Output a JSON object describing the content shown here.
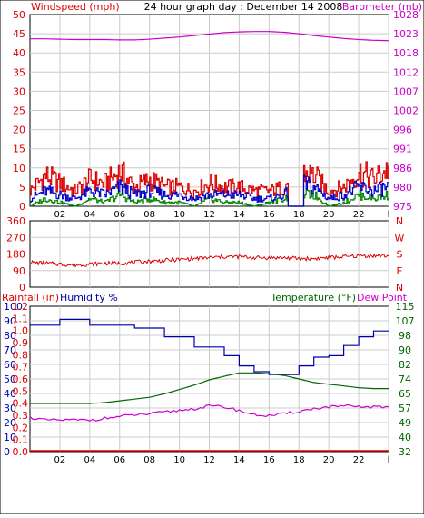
{
  "title": "24 hour graph day : December 14 2008",
  "colors": {
    "wind": "#dd0000",
    "gust": "#0000cc",
    "avg": "#008800",
    "baro": "#cc00cc",
    "dir": "#dd0000",
    "rain": "#dd0000",
    "humidity": "#0000aa",
    "temperature": "#006600",
    "dewpoint": "#cc00cc",
    "grid": "#cccccc",
    "frame": "#000000"
  },
  "chart_data": [
    {
      "type": "line",
      "panel": "wind-barometer",
      "title": "24 hour graph day : December 14 2008",
      "x_tick_labels": [
        "02",
        "04",
        "06",
        "08",
        "10",
        "12",
        "14",
        "16",
        "18",
        "20",
        "22",
        "l"
      ],
      "x_hours": [
        0,
        1,
        2,
        3,
        4,
        5,
        6,
        7,
        8,
        9,
        10,
        11,
        12,
        13,
        14,
        15,
        16,
        17,
        18,
        19,
        20,
        21,
        22,
        23,
        24
      ],
      "left_axis": {
        "label": "Windspeed (mph)",
        "ticks": [
          "0",
          "5",
          "10",
          "15",
          "20",
          "25",
          "30",
          "35",
          "40",
          "45",
          "50"
        ],
        "ylim": [
          0,
          50
        ]
      },
      "right_axis": {
        "label": "Barometer (mb)",
        "ticks": [
          "975",
          "980",
          "986",
          "991",
          "996",
          "1002",
          "1007",
          "1012",
          "1018",
          "1023",
          "1028"
        ],
        "ylim": [
          975,
          1028
        ]
      },
      "series": [
        {
          "axis": "left",
          "values": [
            4,
            8,
            6,
            4,
            7,
            6,
            9,
            5,
            7,
            5,
            5,
            4,
            6,
            5,
            5,
            4,
            4,
            5,
            9,
            8,
            4,
            5,
            9,
            7,
            10
          ]
        },
        {
          "axis": "left",
          "values": [
            2,
            4,
            3,
            2,
            4,
            3,
            5,
            3,
            4,
            3,
            3,
            2,
            3,
            3,
            3,
            2,
            2,
            3,
            6,
            5,
            2,
            3,
            5,
            4,
            5
          ]
        },
        {
          "axis": "left",
          "values": [
            0,
            2,
            1,
            0,
            2,
            1,
            3,
            1,
            2,
            1,
            1,
            0,
            2,
            1,
            1,
            0,
            1,
            2,
            3,
            3,
            0,
            1,
            3,
            2,
            3
          ]
        },
        {
          "axis": "right",
          "values": [
            1021.3,
            1021.3,
            1021.2,
            1021.1,
            1021.1,
            1021.1,
            1021.0,
            1021.0,
            1021.2,
            1021.5,
            1021.8,
            1022.2,
            1022.6,
            1023.0,
            1023.2,
            1023.3,
            1023.3,
            1023.1,
            1022.7,
            1022.2,
            1021.8,
            1021.4,
            1021.1,
            1020.9,
            1020.8
          ]
        }
      ]
    },
    {
      "type": "line",
      "panel": "wind-direction",
      "x_tick_labels": [
        "02",
        "04",
        "06",
        "08",
        "10",
        "12",
        "14",
        "16",
        "18",
        "20",
        "22",
        "l"
      ],
      "x_hours": [
        0,
        1,
        2,
        3,
        4,
        5,
        6,
        7,
        8,
        9,
        10,
        11,
        12,
        13,
        14,
        15,
        16,
        17,
        18,
        19,
        20,
        21,
        22,
        23,
        24
      ],
      "left_axis": {
        "ticks": [
          "0",
          "90",
          "180",
          "270",
          "360"
        ],
        "ylim": [
          0,
          360
        ]
      },
      "right_axis": {
        "ticks": [
          "N",
          "E",
          "S",
          "W",
          "N"
        ]
      },
      "series": [
        {
          "values": [
            135,
            130,
            125,
            120,
            125,
            130,
            130,
            135,
            140,
            145,
            150,
            155,
            160,
            165,
            165,
            160,
            160,
            160,
            155,
            155,
            160,
            165,
            170,
            170,
            170
          ]
        }
      ]
    },
    {
      "type": "line",
      "panel": "rain-humidity-temperature",
      "x_tick_labels": [
        "02",
        "04",
        "06",
        "08",
        "10",
        "12",
        "14",
        "16",
        "18",
        "20",
        "22",
        "l"
      ],
      "x_hours": [
        0,
        1,
        2,
        3,
        4,
        5,
        6,
        7,
        8,
        9,
        10,
        11,
        12,
        13,
        14,
        15,
        16,
        17,
        18,
        19,
        20,
        21,
        22,
        23,
        24
      ],
      "rain_axis": {
        "label": "Rainfall (in)",
        "ticks": [
          "0.0",
          "0.1",
          "0.2",
          "0.3",
          "0.4",
          "0.5",
          "0.6",
          "0.7",
          "0.8",
          "0.9",
          "1.0",
          "1.1",
          "1.2"
        ]
      },
      "humidity_axis": {
        "label": "Humidity %",
        "ticks": [
          "0",
          "10",
          "20",
          "30",
          "40",
          "50",
          "60",
          "70",
          "80",
          "90",
          "100"
        ],
        "ylim": [
          0,
          100
        ]
      },
      "temperature_axis": {
        "label": "Temperature (°F)",
        "ticks": [
          "32",
          "40",
          "49",
          "57",
          "65",
          "74",
          "82",
          "90",
          "98",
          "107",
          "115"
        ],
        "ylim": [
          32,
          115
        ]
      },
      "dewpoint_label": "Dew Point",
      "series": [
        {
          "axis": "rain",
          "values": [
            0,
            0,
            0,
            0,
            0,
            0,
            0,
            0,
            0,
            0,
            0,
            0,
            0,
            0,
            0,
            0,
            0,
            0,
            0,
            0,
            0,
            0,
            0,
            0,
            0
          ]
        },
        {
          "axis": "humidity",
          "values": [
            87,
            87,
            91,
            91,
            87,
            87,
            87,
            85,
            85,
            79,
            79,
            72,
            72,
            66,
            59,
            55,
            53,
            53,
            59,
            65,
            66,
            73,
            79,
            83,
            83
          ]
        },
        {
          "axis": "temperature",
          "values": [
            59.5,
            59.5,
            59.5,
            59.5,
            59.5,
            60,
            61,
            62,
            63,
            65,
            67.5,
            70,
            73,
            75,
            77,
            77,
            76.5,
            75.5,
            73.5,
            71.5,
            70.5,
            69.5,
            68.5,
            68,
            68
          ]
        },
        {
          "axis": "temperature",
          "values": [
            51.5,
            50,
            50,
            50,
            50,
            51,
            52,
            53,
            53.5,
            54.5,
            55.5,
            56.5,
            58,
            57.5,
            55.5,
            53,
            52.5,
            53.5,
            55,
            56.5,
            57.5,
            58,
            57.5,
            57.5,
            57.5
          ]
        }
      ]
    }
  ]
}
